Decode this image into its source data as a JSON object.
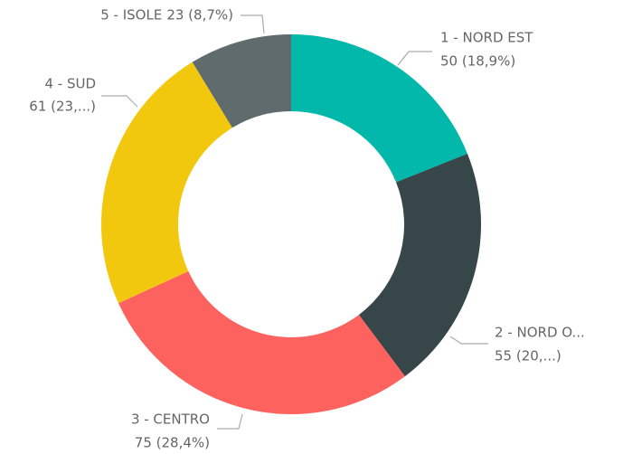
{
  "chart_data": {
    "type": "donut",
    "categories": [
      "1 - NORD EST",
      "2 - NORD O...",
      "3 - CENTRO",
      "4 - SUD",
      "5 - ISOLE"
    ],
    "values": [
      50,
      55,
      75,
      61,
      23
    ],
    "value_labels": [
      "50 (18,9%)",
      "55 (20,...)",
      "75 (28,4%)",
      "61 (23,...)",
      "23 (8,7%)"
    ],
    "colors": [
      "#01b8aa",
      "#374649",
      "#fd625e",
      "#f2c80f",
      "#5f6b6d"
    ]
  }
}
